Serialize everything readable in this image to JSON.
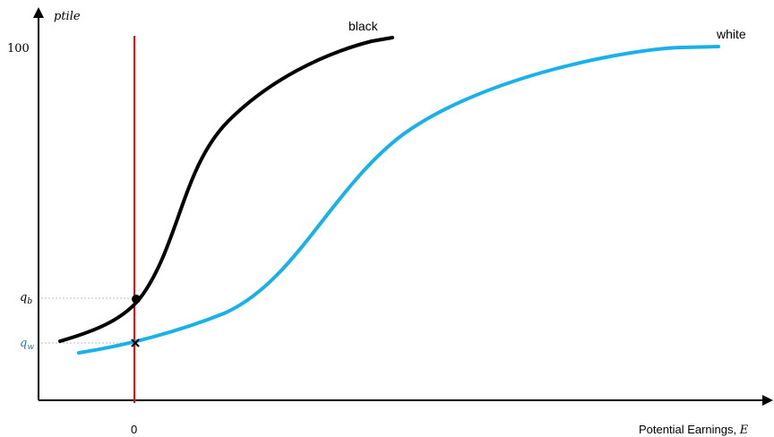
{
  "diagram": {
    "y_axis_label": "ptile",
    "y_tick_label": "100",
    "x_axis_label_text": "Potential Earnings, ",
    "x_axis_label_var": "E",
    "x_tick_label": "0",
    "q_b_base": "q",
    "q_b_sub": "b",
    "q_w_base": "q",
    "q_w_sub": "w",
    "black_curve_label": "black",
    "white_curve_label": "white",
    "colors": {
      "black_curve": "#000000",
      "white_curve": "#1ab0e8",
      "zero_line": "#ff0000",
      "q_w_label": "#2e75b6",
      "guide": "#a6a6a6"
    }
  }
}
